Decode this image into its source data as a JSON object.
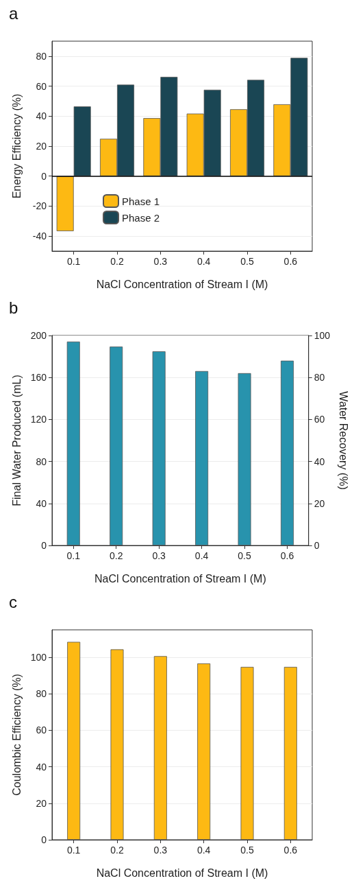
{
  "chart_data": [
    {
      "type": "bar",
      "title": "a",
      "xlabel": "NaCl Concentration of Stream I (M)",
      "ylabel": "Energy Efficiency (%)",
      "categories": [
        "0.1",
        "0.2",
        "0.3",
        "0.4",
        "0.5",
        "0.6"
      ],
      "series": [
        {
          "name": "Phase 1",
          "color": "#fdb913",
          "values": [
            -36.7,
            24.9,
            38.7,
            41.7,
            44.6,
            47.9
          ]
        },
        {
          "name": "Phase 2",
          "color": "#1a4654",
          "values": [
            46.5,
            61,
            66.2,
            57.6,
            64.2,
            78.9
          ]
        }
      ],
      "ylim": [
        -50,
        90
      ],
      "yticks": [
        -40,
        -20,
        0,
        20,
        40,
        60,
        80
      ],
      "grid": "y",
      "legend": "bottom left",
      "ref_lines": [
        {
          "axis": "y",
          "value": 0,
          "color": "#000000"
        }
      ]
    },
    {
      "type": "bar",
      "title": "b",
      "xlabel": "NaCl Concentration of Stream I (M)",
      "ylabel": "Final Water Produced (mL)",
      "y2label": "Water Recovery (%)",
      "categories": [
        "0.1",
        "0.2",
        "0.3",
        "0.4",
        "0.5",
        "0.6"
      ],
      "series": [
        {
          "color": "#2893ad",
          "values": [
            194.2,
            189.4,
            184.9,
            166.1,
            164.1,
            176
          ]
        }
      ],
      "ylim": [
        0,
        200
      ],
      "yticks": [
        0,
        40,
        80,
        120,
        160,
        200
      ],
      "y2lim": [
        0,
        100
      ],
      "y2ticks": [
        0,
        20,
        40,
        60,
        80,
        100
      ],
      "grid": "y"
    },
    {
      "type": "bar",
      "title": "c",
      "xlabel": "NaCl Concentration of Stream I (M)",
      "ylabel": "Coulombic Efficiency (%)",
      "categories": [
        "0.1",
        "0.2",
        "0.3",
        "0.4",
        "0.5",
        "0.6"
      ],
      "series": [
        {
          "color": "#fdb913",
          "values": [
            108.4,
            104.3,
            100.6,
            96.6,
            94.7,
            94.7
          ]
        }
      ],
      "ylim": [
        0,
        115
      ],
      "yticks": [
        0,
        20,
        40,
        60,
        80,
        100
      ],
      "grid": "y"
    }
  ]
}
